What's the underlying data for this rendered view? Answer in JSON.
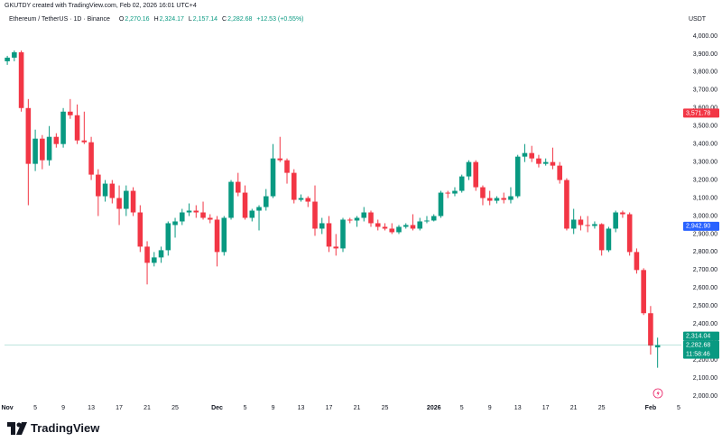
{
  "header": {
    "created": "GKUTDY created with TradingView.com, Feb 02, 2026 16:01 UTC+4",
    "ohlc": [
      {
        "key": "O",
        "value": "2,270.16"
      },
      {
        "key": "H",
        "value": "2,324.17"
      },
      {
        "key": "L",
        "value": "2,157.14"
      },
      {
        "key": "C",
        "value": "2,282.68"
      }
    ],
    "change": "+12.53 (+0.55%)"
  },
  "footer": {
    "brand": "TradingView"
  },
  "chart_data": {
    "type": "candlestick",
    "title": "Ethereum / TetherUS · 1D · Binance",
    "unit": "USDT",
    "up_color": "#089981",
    "down_color": "#f23645",
    "grid": false,
    "open": [
      3860,
      3880,
      3910,
      3600,
      3290,
      3430,
      3310,
      3440,
      3400,
      3580,
      3560,
      3420,
      3410,
      3230,
      3110,
      3180,
      3100,
      3040,
      3140,
      3020,
      2830,
      2740,
      2770,
      2810,
      2950,
      2970,
      3020,
      3030,
      3020,
      2990,
      2980,
      2800,
      2990,
      3190,
      3130,
      2990,
      3030,
      3050,
      3110,
      3320,
      3310,
      3240,
      3090,
      3100,
      3080,
      2930,
      2960,
      2830,
      2820,
      2980,
      2975,
      2990,
      3020,
      2960,
      2940,
      2930,
      2910,
      2940,
      2950,
      2930,
      2970,
      2975,
      3000,
      3130,
      3125,
      3140,
      3220,
      3300,
      3160,
      3100,
      3085,
      3100,
      3090,
      3110,
      3330,
      3350,
      3320,
      3290,
      3300,
      3280,
      3200,
      2930,
      2980,
      2950,
      2945,
      2955,
      2810,
      2930,
      3020,
      3010,
      2800,
      2700,
      2460,
      2270.16
    ],
    "high": [
      3890,
      3920,
      3920,
      3650,
      3480,
      3450,
      3500,
      3460,
      3600,
      3650,
      3620,
      3580,
      3440,
      3260,
      3200,
      3200,
      3170,
      3170,
      3160,
      3060,
      2860,
      2800,
      2830,
      2970,
      2990,
      3040,
      3070,
      3060,
      3080,
      3010,
      3000,
      3000,
      3200,
      3240,
      3170,
      3040,
      3060,
      3150,
      3400,
      3440,
      3320,
      3260,
      3120,
      3110,
      3170,
      2990,
      3000,
      2900,
      2990,
      2990,
      3000,
      3050,
      3030,
      2980,
      2960,
      2960,
      2950,
      2960,
      3010,
      2990,
      3000,
      3010,
      3140,
      3140,
      3160,
      3230,
      3310,
      3310,
      3170,
      3140,
      3110,
      3130,
      3160,
      3340,
      3400,
      3390,
      3340,
      3320,
      3380,
      3300,
      3210,
      3040,
      3000,
      3000,
      2970,
      2960,
      2940,
      3030,
      3030,
      3020,
      2820,
      2710,
      2500,
      2324.17
    ],
    "low": [
      3840,
      3860,
      3580,
      3060,
      3250,
      3260,
      3280,
      3380,
      3380,
      3540,
      3400,
      3400,
      3200,
      3000,
      3080,
      3070,
      2950,
      3000,
      3000,
      2800,
      2620,
      2720,
      2740,
      2780,
      2880,
      2950,
      3000,
      2990,
      2980,
      2960,
      2720,
      2780,
      2980,
      3110,
      2980,
      2970,
      2920,
      3030,
      3100,
      3300,
      3180,
      3070,
      3080,
      3050,
      2890,
      2900,
      2800,
      2780,
      2800,
      2960,
      2940,
      2970,
      2940,
      2920,
      2920,
      2900,
      2900,
      2930,
      2920,
      2920,
      2960,
      2970,
      2990,
      3100,
      3110,
      3130,
      3200,
      3140,
      3060,
      3060,
      3070,
      3070,
      3070,
      3100,
      3300,
      3300,
      3270,
      3280,
      3260,
      3180,
      2920,
      2900,
      2920,
      2910,
      2930,
      2780,
      2800,
      2910,
      2990,
      2780,
      2680,
      2450,
      2230,
      2157.14
    ],
    "close": [
      3880,
      3910,
      3600,
      3290,
      3430,
      3310,
      3440,
      3400,
      3580,
      3560,
      3420,
      3410,
      3230,
      3110,
      3180,
      3100,
      3040,
      3140,
      3020,
      2830,
      2740,
      2770,
      2810,
      2960,
      2970,
      3020,
      3030,
      3020,
      2990,
      2980,
      2800,
      2990,
      3190,
      3130,
      2990,
      3030,
      3050,
      3110,
      3320,
      3310,
      3240,
      3090,
      3100,
      3080,
      2930,
      2960,
      2830,
      2820,
      2980,
      2975,
      2990,
      3020,
      2960,
      2940,
      2930,
      2910,
      2940,
      2950,
      2930,
      2970,
      2975,
      3000,
      3130,
      3125,
      3140,
      3220,
      3300,
      3160,
      3100,
      3085,
      3100,
      3090,
      3110,
      3330,
      3350,
      3320,
      3290,
      3300,
      3280,
      3200,
      2930,
      2980,
      2950,
      2945,
      2955,
      2810,
      2930,
      3020,
      3010,
      2800,
      2700,
      2460,
      2280,
      2282.68
    ],
    "xlim": [
      -0.4,
      96.4
    ],
    "xticks": [
      {
        "value": 0,
        "label": "Nov"
      },
      {
        "value": 4,
        "label": "5"
      },
      {
        "value": 8,
        "label": "9"
      },
      {
        "value": 12,
        "label": "13"
      },
      {
        "value": 16,
        "label": "17"
      },
      {
        "value": 20,
        "label": "21"
      },
      {
        "value": 24,
        "label": "25"
      },
      {
        "value": 30,
        "label": "Dec"
      },
      {
        "value": 34,
        "label": "5"
      },
      {
        "value": 38,
        "label": "9"
      },
      {
        "value": 42,
        "label": "13"
      },
      {
        "value": 46,
        "label": "17"
      },
      {
        "value": 50,
        "label": "21"
      },
      {
        "value": 54,
        "label": "25"
      },
      {
        "value": 61,
        "label": "2026"
      },
      {
        "value": 65,
        "label": "5"
      },
      {
        "value": 69,
        "label": "9"
      },
      {
        "value": 73,
        "label": "13"
      },
      {
        "value": 77,
        "label": "17"
      },
      {
        "value": 81,
        "label": "21"
      },
      {
        "value": 85,
        "label": "25"
      },
      {
        "value": 92,
        "label": "Feb"
      },
      {
        "value": 96,
        "label": "5"
      }
    ],
    "ylim": [
      1970,
      4060
    ],
    "yticks": [
      {
        "value": 2000,
        "label": "2,000.00"
      },
      {
        "value": 2100,
        "label": "2,100.00"
      },
      {
        "value": 2200,
        "label": "2,200.00"
      },
      {
        "value": 2300,
        "label": "2,300.00"
      },
      {
        "value": 2400,
        "label": "2,400.00"
      },
      {
        "value": 2500,
        "label": "2,500.00"
      },
      {
        "value": 2600,
        "label": "2,600.00"
      },
      {
        "value": 2700,
        "label": "2,700.00"
      },
      {
        "value": 2800,
        "label": "2,800.00"
      },
      {
        "value": 2900,
        "label": "2,900.00"
      },
      {
        "value": 3000,
        "label": "3,000.00"
      },
      {
        "value": 3100,
        "label": "3,100.00"
      },
      {
        "value": 3200,
        "label": "3,200.00"
      },
      {
        "value": 3300,
        "label": "3,300.00"
      },
      {
        "value": 3400,
        "label": "3,400.00"
      },
      {
        "value": 3500,
        "label": "3,500.00"
      },
      {
        "value": 3600,
        "label": "3,600.00"
      },
      {
        "value": 3700,
        "label": "3,700.00"
      },
      {
        "value": 3800,
        "label": "3,800.00"
      },
      {
        "value": 3900,
        "label": "3,900.00"
      },
      {
        "value": 4000,
        "label": "4,000.00"
      }
    ],
    "price_labels": [
      {
        "value": 3571.78,
        "label": "3,571.78",
        "color": "#f23645"
      },
      {
        "value": 2942.9,
        "label": "2,942.90",
        "color": "#2962ff"
      },
      {
        "value": 2314.04,
        "label": "2,314.04",
        "color": "#089981"
      },
      {
        "value": 2282.68,
        "label": "2,282.68",
        "color": "#089981",
        "countdown": "11:58:46"
      }
    ]
  }
}
